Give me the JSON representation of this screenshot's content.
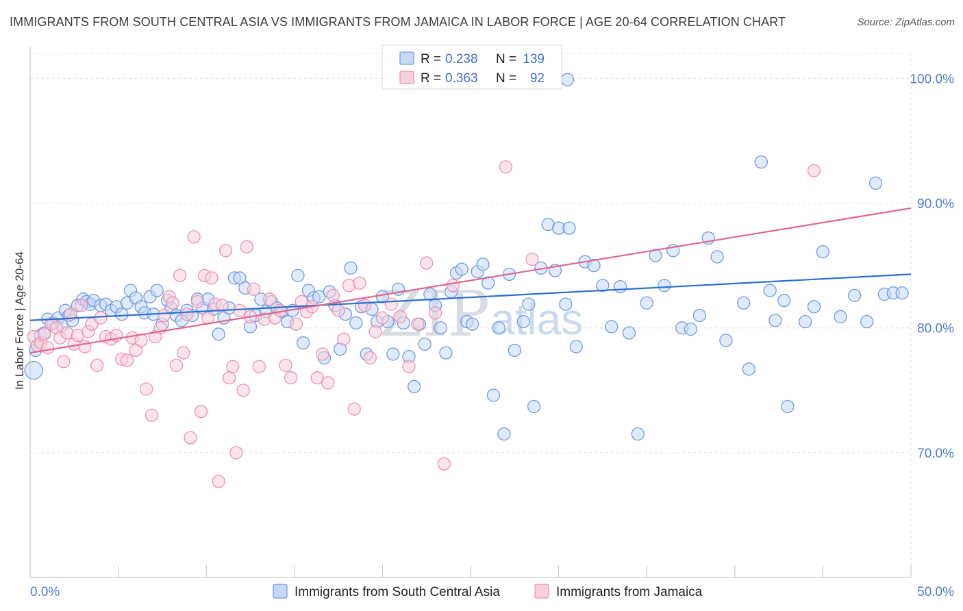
{
  "title": "IMMIGRANTS FROM SOUTH CENTRAL ASIA VS IMMIGRANTS FROM JAMAICA IN LABOR FORCE | AGE 20-64 CORRELATION CHART",
  "source": "Source: ZipAtlas.com",
  "watermark": {
    "zip": "ZIP",
    "atlas": "atlas"
  },
  "colors": {
    "blue": "#6f9ae0",
    "blue_fill": "#c5d8f5",
    "blue_line": "#2a6fd0",
    "pink": "#ef8fb0",
    "pink_fill": "#f8cfdd",
    "pink_line": "#e06690",
    "grid": "#dedede",
    "tick_text": "#4a7bd0"
  },
  "chart_data": {
    "type": "scatter",
    "xlabel": "",
    "ylabel": "In Labor Force | Age 20-64",
    "xlim": [
      0,
      50
    ],
    "ylim": [
      60,
      102
    ],
    "x_tick_labels": [
      {
        "value": 0,
        "label": "0.0%"
      },
      {
        "value": 50,
        "label": "50.0%"
      }
    ],
    "x_minor_ticks": [
      0,
      5,
      10,
      15,
      20,
      25,
      30,
      35,
      40,
      45,
      50
    ],
    "y_ticks": [
      {
        "value": 70,
        "label": "70.0%"
      },
      {
        "value": 80,
        "label": "80.0%"
      },
      {
        "value": 90,
        "label": "90.0%"
      },
      {
        "value": 100,
        "label": "100.0%"
      }
    ],
    "grid": true,
    "legend_top": {
      "placement": "top-center",
      "entries": [
        {
          "r_label": "R =",
          "r_value": "0.238",
          "n_label": "N =",
          "n_value": "139"
        },
        {
          "r_label": "R =",
          "r_value": "0.363",
          "n_label": "N =",
          "n_value": "92"
        }
      ]
    },
    "series": [
      {
        "name": "Immigrants from South Central Asia",
        "color": "#6f9ae0",
        "trend": {
          "x": [
            0,
            50
          ],
          "y": [
            80.6,
            84.3
          ]
        },
        "points": [
          [
            0.2,
            76.6
          ],
          [
            0.3,
            78.2
          ],
          [
            0.4,
            78.6
          ],
          [
            0.6,
            79.4
          ],
          [
            0.8,
            79.6
          ],
          [
            1.0,
            80.7
          ],
          [
            1.3,
            80.4
          ],
          [
            1.6,
            80.8
          ],
          [
            1.8,
            80.2
          ],
          [
            2.0,
            81.4
          ],
          [
            2.2,
            81.0
          ],
          [
            2.4,
            80.6
          ],
          [
            2.7,
            81.8
          ],
          [
            3.0,
            82.3
          ],
          [
            3.2,
            82.1
          ],
          [
            3.4,
            81.9
          ],
          [
            3.6,
            82.2
          ],
          [
            4.0,
            81.8
          ],
          [
            4.3,
            81.9
          ],
          [
            4.6,
            81.4
          ],
          [
            4.9,
            81.7
          ],
          [
            5.2,
            81.1
          ],
          [
            5.5,
            82.0
          ],
          [
            5.7,
            83.0
          ],
          [
            6.0,
            82.4
          ],
          [
            6.3,
            81.7
          ],
          [
            6.5,
            81.2
          ],
          [
            6.8,
            82.5
          ],
          [
            7.0,
            81.1
          ],
          [
            7.2,
            83.0
          ],
          [
            7.5,
            80.3
          ],
          [
            7.8,
            82.2
          ],
          [
            8.0,
            81.6
          ],
          [
            8.3,
            81.0
          ],
          [
            8.6,
            80.6
          ],
          [
            8.9,
            81.4
          ],
          [
            9.2,
            81.0
          ],
          [
            9.5,
            82.3
          ],
          [
            9.8,
            81.6
          ],
          [
            10.1,
            82.3
          ],
          [
            10.4,
            81.5
          ],
          [
            10.7,
            79.5
          ],
          [
            11.0,
            80.8
          ],
          [
            11.3,
            81.6
          ],
          [
            11.6,
            84.0
          ],
          [
            11.9,
            84.0
          ],
          [
            12.2,
            83.2
          ],
          [
            12.5,
            80.1
          ],
          [
            12.8,
            81.0
          ],
          [
            13.1,
            82.3
          ],
          [
            13.4,
            81.3
          ],
          [
            13.7,
            82.1
          ],
          [
            14.0,
            81.6
          ],
          [
            14.3,
            81.3
          ],
          [
            14.6,
            80.5
          ],
          [
            14.9,
            81.4
          ],
          [
            15.2,
            84.2
          ],
          [
            15.5,
            78.8
          ],
          [
            15.8,
            83.0
          ],
          [
            16.1,
            82.4
          ],
          [
            16.4,
            82.5
          ],
          [
            16.7,
            77.6
          ],
          [
            17.0,
            82.9
          ],
          [
            17.3,
            81.8
          ],
          [
            17.6,
            78.3
          ],
          [
            17.9,
            81.1
          ],
          [
            18.2,
            84.8
          ],
          [
            18.5,
            80.4
          ],
          [
            18.8,
            81.7
          ],
          [
            19.1,
            77.9
          ],
          [
            19.4,
            81.5
          ],
          [
            19.7,
            80.5
          ],
          [
            20.0,
            82.5
          ],
          [
            20.3,
            80.5
          ],
          [
            20.6,
            77.9
          ],
          [
            20.9,
            83.1
          ],
          [
            21.2,
            80.4
          ],
          [
            21.5,
            77.7
          ],
          [
            21.8,
            75.3
          ],
          [
            22.1,
            80.3
          ],
          [
            22.4,
            78.7
          ],
          [
            22.7,
            82.7
          ],
          [
            23.0,
            81.8
          ],
          [
            23.3,
            80.0
          ],
          [
            23.6,
            78.0
          ],
          [
            23.9,
            82.9
          ],
          [
            24.2,
            84.4
          ],
          [
            24.5,
            84.7
          ],
          [
            24.8,
            80.5
          ],
          [
            25.1,
            80.3
          ],
          [
            25.4,
            84.5
          ],
          [
            25.7,
            85.1
          ],
          [
            26.0,
            83.6
          ],
          [
            26.3,
            74.6
          ],
          [
            26.6,
            80.0
          ],
          [
            26.9,
            71.5
          ],
          [
            27.2,
            84.3
          ],
          [
            27.5,
            78.2
          ],
          [
            28.0,
            80.5
          ],
          [
            28.3,
            81.9
          ],
          [
            28.6,
            73.7
          ],
          [
            29.0,
            84.8
          ],
          [
            29.4,
            88.3
          ],
          [
            29.8,
            84.6
          ],
          [
            30.0,
            88.0
          ],
          [
            30.4,
            81.9
          ],
          [
            30.6,
            88.0
          ],
          [
            31.0,
            78.5
          ],
          [
            31.5,
            85.3
          ],
          [
            32.0,
            85.0
          ],
          [
            32.5,
            83.4
          ],
          [
            33.0,
            80.1
          ],
          [
            33.5,
            83.3
          ],
          [
            34.0,
            79.6
          ],
          [
            34.5,
            71.5
          ],
          [
            35.0,
            82.0
          ],
          [
            35.5,
            85.8
          ],
          [
            36.0,
            83.4
          ],
          [
            36.5,
            86.2
          ],
          [
            37.0,
            80.0
          ],
          [
            37.5,
            79.9
          ],
          [
            38.0,
            81.0
          ],
          [
            38.5,
            87.2
          ],
          [
            39.0,
            85.7
          ],
          [
            39.5,
            79.0
          ],
          [
            40.5,
            82.0
          ],
          [
            40.8,
            76.7
          ],
          [
            41.5,
            93.3
          ],
          [
            42.0,
            83.0
          ],
          [
            42.3,
            80.6
          ],
          [
            42.8,
            82.2
          ],
          [
            43.0,
            73.7
          ],
          [
            44.0,
            80.5
          ],
          [
            44.5,
            81.7
          ],
          [
            45.0,
            86.1
          ],
          [
            46.0,
            80.9
          ],
          [
            46.8,
            82.6
          ],
          [
            47.5,
            80.5
          ],
          [
            48.0,
            91.6
          ],
          [
            48.5,
            82.7
          ],
          [
            49.0,
            82.8
          ],
          [
            49.5,
            82.8
          ],
          [
            30.5,
            99.9
          ]
        ]
      },
      {
        "name": "Immigrants from Jamaica",
        "color": "#ef8fb0",
        "trend": {
          "x": [
            0,
            50
          ],
          "y": [
            78.0,
            89.6
          ]
        },
        "points": [
          [
            0.2,
            79.3
          ],
          [
            0.4,
            78.6
          ],
          [
            0.6,
            78.8
          ],
          [
            0.8,
            79.5
          ],
          [
            1.0,
            78.4
          ],
          [
            1.2,
            80.3
          ],
          [
            1.5,
            80.0
          ],
          [
            1.7,
            79.2
          ],
          [
            1.9,
            77.3
          ],
          [
            2.1,
            79.6
          ],
          [
            2.3,
            81.1
          ],
          [
            2.5,
            78.7
          ],
          [
            2.7,
            79.4
          ],
          [
            2.9,
            81.8
          ],
          [
            3.1,
            78.5
          ],
          [
            3.3,
            79.7
          ],
          [
            3.5,
            80.3
          ],
          [
            3.8,
            77.0
          ],
          [
            4.0,
            80.8
          ],
          [
            4.3,
            79.3
          ],
          [
            4.6,
            79.1
          ],
          [
            4.9,
            79.4
          ],
          [
            5.2,
            77.5
          ],
          [
            5.5,
            77.4
          ],
          [
            5.8,
            79.2
          ],
          [
            6.0,
            78.2
          ],
          [
            6.3,
            79.0
          ],
          [
            6.6,
            75.1
          ],
          [
            6.9,
            73.0
          ],
          [
            7.1,
            79.3
          ],
          [
            7.4,
            80.0
          ],
          [
            7.6,
            81.0
          ],
          [
            7.9,
            82.5
          ],
          [
            8.1,
            82.0
          ],
          [
            8.3,
            77.0
          ],
          [
            8.5,
            84.2
          ],
          [
            8.7,
            78.0
          ],
          [
            8.9,
            81.1
          ],
          [
            9.1,
            71.2
          ],
          [
            9.3,
            87.3
          ],
          [
            9.5,
            82.1
          ],
          [
            9.7,
            73.3
          ],
          [
            9.9,
            84.2
          ],
          [
            10.1,
            80.8
          ],
          [
            10.3,
            84.0
          ],
          [
            10.5,
            81.9
          ],
          [
            10.7,
            67.7
          ],
          [
            10.9,
            81.8
          ],
          [
            11.1,
            86.2
          ],
          [
            11.3,
            76.0
          ],
          [
            11.5,
            76.9
          ],
          [
            11.7,
            70.0
          ],
          [
            11.9,
            81.4
          ],
          [
            12.1,
            75.0
          ],
          [
            12.3,
            86.5
          ],
          [
            12.5,
            80.9
          ],
          [
            12.7,
            83.1
          ],
          [
            13.0,
            76.9
          ],
          [
            13.3,
            80.7
          ],
          [
            13.6,
            82.3
          ],
          [
            13.9,
            80.8
          ],
          [
            14.2,
            81.4
          ],
          [
            14.5,
            77.0
          ],
          [
            14.8,
            76.0
          ],
          [
            15.1,
            80.3
          ],
          [
            15.4,
            82.1
          ],
          [
            15.7,
            81.3
          ],
          [
            16.0,
            81.7
          ],
          [
            16.3,
            76.0
          ],
          [
            16.6,
            77.9
          ],
          [
            16.9,
            75.6
          ],
          [
            17.2,
            82.6
          ],
          [
            17.5,
            81.4
          ],
          [
            17.8,
            79.1
          ],
          [
            18.1,
            83.4
          ],
          [
            18.4,
            73.5
          ],
          [
            18.7,
            83.6
          ],
          [
            19.0,
            81.8
          ],
          [
            19.3,
            77.6
          ],
          [
            19.6,
            79.7
          ],
          [
            20.0,
            80.8
          ],
          [
            20.5,
            81.9
          ],
          [
            21.0,
            80.9
          ],
          [
            21.5,
            76.9
          ],
          [
            22.0,
            80.3
          ],
          [
            22.5,
            85.2
          ],
          [
            23.0,
            81.2
          ],
          [
            23.5,
            69.1
          ],
          [
            24.0,
            83.4
          ],
          [
            27.0,
            92.9
          ],
          [
            28.5,
            85.5
          ],
          [
            44.5,
            92.6
          ]
        ]
      }
    ]
  },
  "bottom_legend": {
    "entries": [
      "Immigrants from South Central Asia",
      "Immigrants from Jamaica"
    ]
  }
}
